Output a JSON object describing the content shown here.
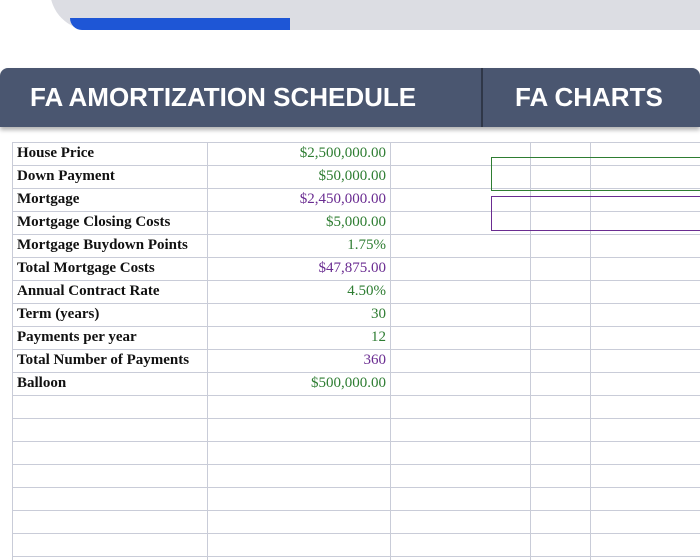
{
  "tabs": [
    "FA AMORTIZATION SCHEDULE",
    "FA CHARTS"
  ],
  "table": {
    "rows": [
      {
        "label": "House Price",
        "value": "$2,500,000.00",
        "color": "#2e7d32"
      },
      {
        "label": "Down Payment",
        "value": "$50,000.00",
        "color": "#2e7d32"
      },
      {
        "label": "Mortgage",
        "value": "$2,450,000.00",
        "color": "#6a2c91"
      },
      {
        "label": "Mortgage Closing Costs",
        "value": "$5,000.00",
        "color": "#2e7d32"
      },
      {
        "label": "Mortgage Buydown Points",
        "value": "1.75%",
        "color": "#2e7d32"
      },
      {
        "label": "Total Mortgage Costs",
        "value": "$47,875.00",
        "color": "#6a2c91"
      },
      {
        "label": "Annual Contract Rate",
        "value": "4.50%",
        "color": "#2e7d32"
      },
      {
        "label": "Term (years)",
        "value": "30",
        "color": "#2e7d32"
      },
      {
        "label": "Payments per year",
        "value": "12",
        "color": "#2e7d32"
      },
      {
        "label": "Total Number of Payments",
        "value": "360",
        "color": "#6a2c91"
      },
      {
        "label": "Balloon",
        "value": "$500,000.00",
        "color": "#2e7d32"
      }
    ]
  }
}
